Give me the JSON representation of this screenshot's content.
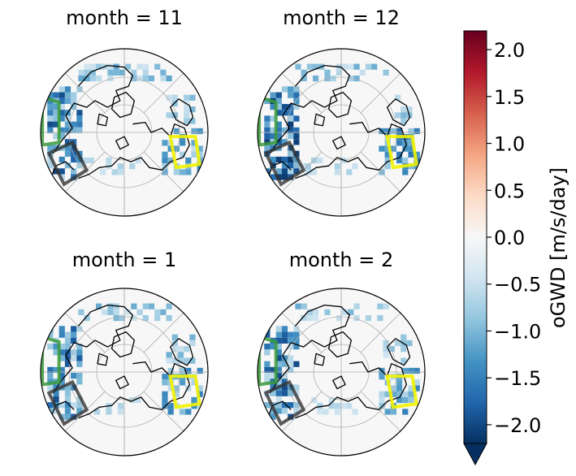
{
  "figure": {
    "panels": [
      {
        "title": "month = 11"
      },
      {
        "title": "month = 12"
      },
      {
        "title": "month = 1"
      },
      {
        "title": "month = 2"
      }
    ],
    "colorbar": {
      "label": "oGWD [m/s/day]",
      "vmin": -2.2,
      "vmax": 2.2,
      "ticks": [
        "2.0",
        "1.5",
        "1.0",
        "0.5",
        "0.0",
        "−0.5",
        "−1.0",
        "−1.5",
        "−2.0"
      ],
      "tick_values": [
        2.0,
        1.5,
        1.0,
        0.5,
        0.0,
        -0.5,
        -1.0,
        -1.5,
        -2.0
      ],
      "extend": "min",
      "colormap": "RdBu_r"
    },
    "colors": {
      "land_outline": "#000000",
      "grid": "#b0b0b0",
      "box_green": "#3a9a3a",
      "box_black": "#333333",
      "box_yellow": "#f2f200",
      "drag_dark": "#1f4e8c",
      "drag_light": "#a8cde6"
    },
    "projection": "north-polar-stereographic"
  }
}
